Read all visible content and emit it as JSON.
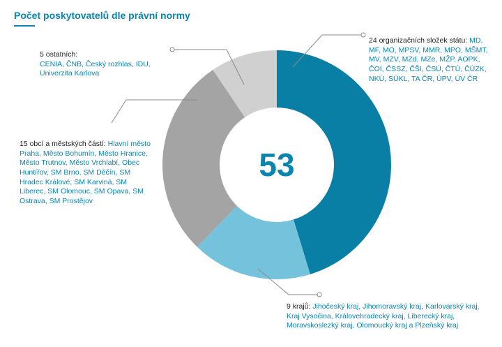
{
  "title": "Počet poskytovatelů dle právní normy",
  "colors": {
    "accent": "#0a85b0",
    "line": "#8a8a8a"
  },
  "chart_data": {
    "type": "donut",
    "total": "53",
    "series": [
      {
        "value": 24,
        "color": "#0a7fa6",
        "label_head": "24 organizačních složek státu:",
        "label_items": "MD, MF, MO, MPSV, MMR, MPO, MŠMT, MV, MZV, MZd, MZe, MŽP, AOPK, ČOI, ČSSZ, ČŠI, ČSÚ, ČTÚ, ČÚZK, NKÚ, SÚKL, TA ČR, ÚPV, ÚV ČR"
      },
      {
        "value": 9,
        "color": "#75c2dd",
        "label_head": "9 krajů:",
        "label_items": "Jihočeský kraj, Jihomoravský kraj, Karlovarský kraj, Kraj Vysočina, Královehradecký kraj, Liberecký kraj, Moravskoslezký kraj, Olomoucký kraj a Plzeňský kraj"
      },
      {
        "value": 15,
        "color": "#a4a4a4",
        "label_head": "15 obcí a městských částí:",
        "label_items": "Hlavní město Praha, Město Bohumín, Město Hranice, Město Trutnov, Město Vrchlabí, Obec Huntířov, SM Brno, SM Děčín, SM Hradec Králové, SM Karviná, SM Liberec, SM Olomouc, SM Opava, SM Ostrava, SM Prostějov"
      },
      {
        "value": 5,
        "color": "#d0d0d0",
        "label_head": "5 ostatních:",
        "label_items": "CENIA, ČNB, Český rozhlas, IDU, Univerzita Karlova"
      }
    ]
  }
}
